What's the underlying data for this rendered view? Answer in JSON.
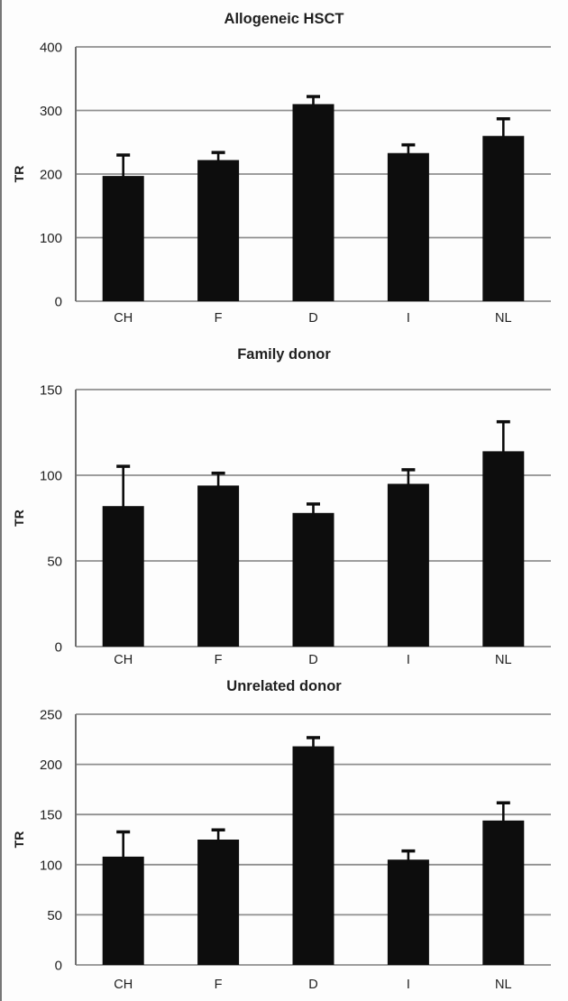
{
  "colors": {
    "bar": "#0d0d0d",
    "error_bar": "#0d0d0d",
    "gridline": "#8f8f8f",
    "axis_line": "#6e6e6e",
    "text": "#1f1f1f",
    "background": "#fdfdfd"
  },
  "chart_data": [
    {
      "type": "bar",
      "title": "Allogeneic HSCT",
      "ylabel": "TR",
      "xlabel": "",
      "categories": [
        "CH",
        "F",
        "D",
        "I",
        "NL"
      ],
      "values": [
        197,
        222,
        310,
        233,
        260
      ],
      "error_upper": [
        35,
        14,
        14,
        15,
        29
      ],
      "ylim": [
        0,
        400
      ],
      "yticks": [
        0,
        100,
        200,
        300,
        400
      ],
      "grid": true,
      "legend": "none"
    },
    {
      "type": "bar",
      "title": "Family donor",
      "ylabel": "TR",
      "xlabel": "",
      "categories": [
        "CH",
        "F",
        "D",
        "I",
        "NL"
      ],
      "values": [
        82,
        94,
        78,
        95,
        114
      ],
      "error_upper": [
        24,
        8,
        6,
        9,
        18
      ],
      "ylim": [
        0,
        150
      ],
      "yticks": [
        0,
        50,
        100,
        150
      ],
      "grid": true,
      "legend": "none"
    },
    {
      "type": "bar",
      "title": "Unrelated donor",
      "ylabel": "TR",
      "xlabel": "",
      "categories": [
        "CH",
        "F",
        "D",
        "I",
        "NL"
      ],
      "values": [
        108,
        125,
        218,
        105,
        144
      ],
      "error_upper": [
        26,
        11,
        10,
        10,
        19
      ],
      "ylim": [
        0,
        250
      ],
      "yticks": [
        0,
        50,
        100,
        150,
        200,
        250
      ],
      "grid": true,
      "legend": "none"
    }
  ]
}
